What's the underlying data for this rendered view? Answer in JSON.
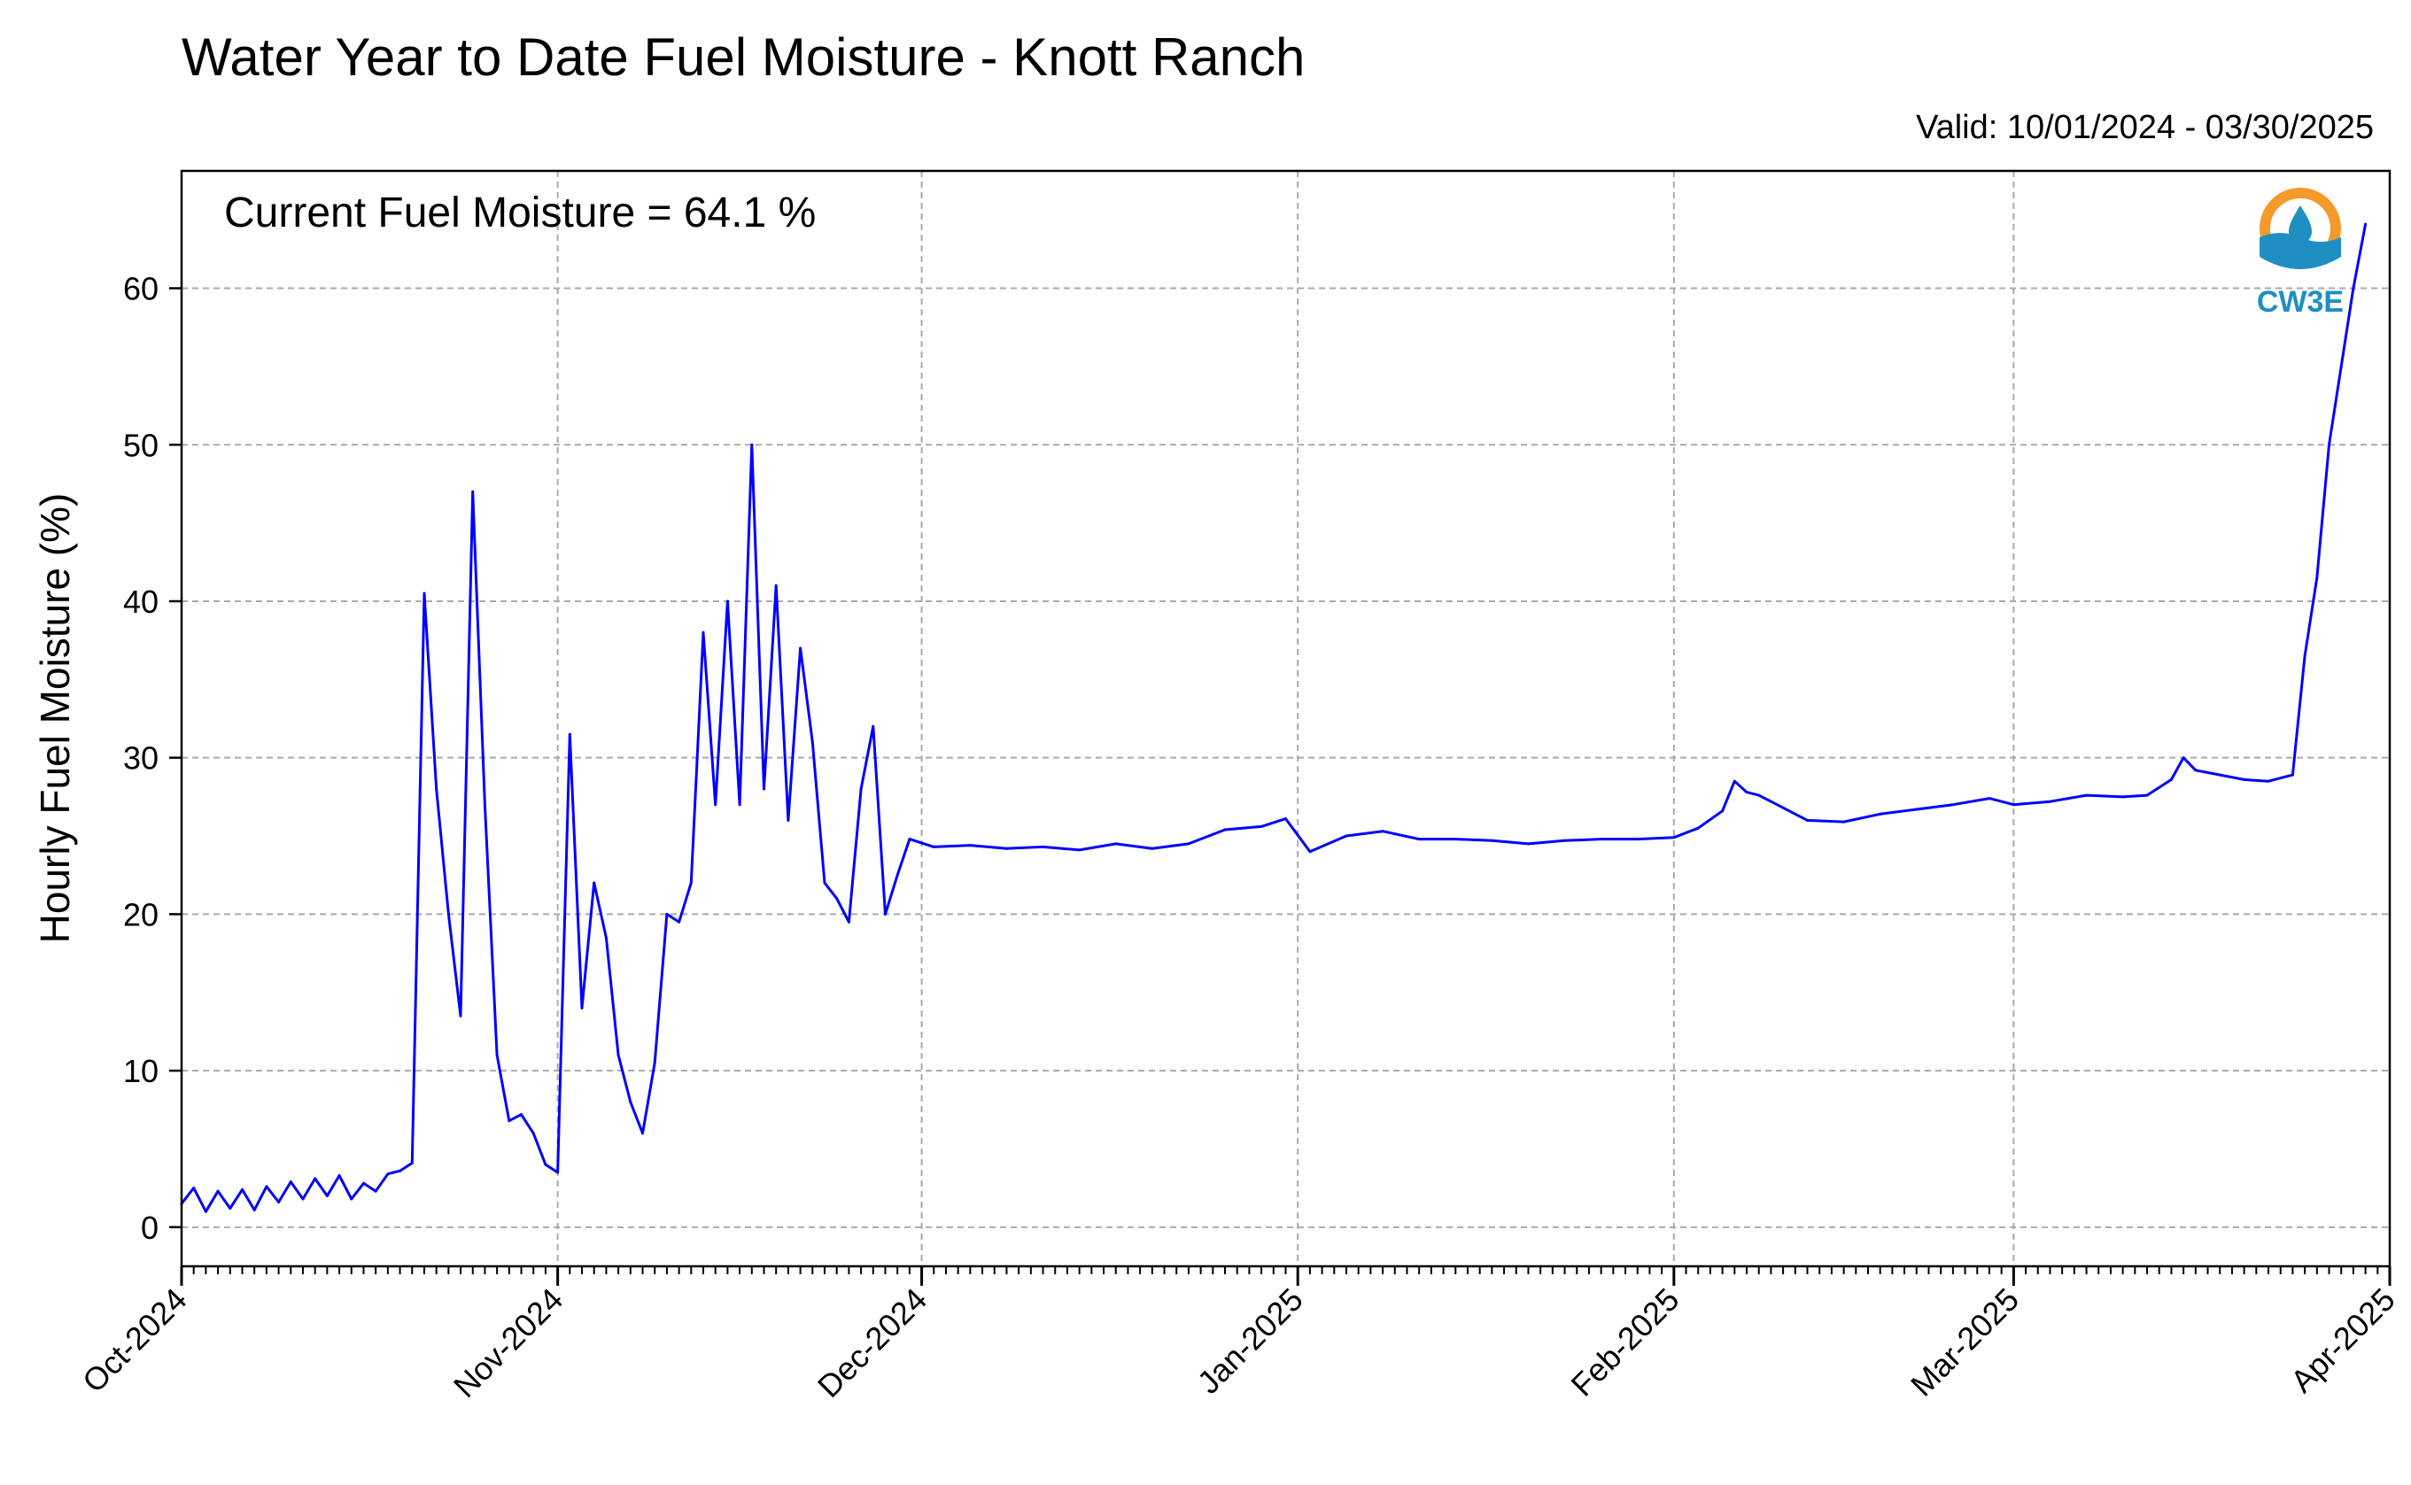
{
  "chart_data": {
    "type": "line",
    "title": "Water Year to Date Fuel Moisture - Knott Ranch",
    "subtitle": "Valid: 10/01/2024 - 03/30/2025",
    "ylabel": "Hourly Fuel Moisture (%)",
    "xlabel": "",
    "annotation": "Current Fuel Moisture = 64.1 %",
    "logo_text": "CW3E",
    "line_color": "#0000ff",
    "ylim": [
      -2.5,
      67.5
    ],
    "yticks": [
      0,
      10,
      20,
      30,
      40,
      50,
      60
    ],
    "xlim": [
      "2024-10-01",
      "2025-04-01"
    ],
    "xticks": [
      {
        "date": "2024-10-01",
        "label": "Oct-2024"
      },
      {
        "date": "2024-11-01",
        "label": "Nov-2024"
      },
      {
        "date": "2024-12-01",
        "label": "Dec-2024"
      },
      {
        "date": "2025-01-01",
        "label": "Jan-2025"
      },
      {
        "date": "2025-02-01",
        "label": "Feb-2025"
      },
      {
        "date": "2025-03-01",
        "label": "Mar-2025"
      },
      {
        "date": "2025-04-01",
        "label": "Apr-2025"
      }
    ],
    "grid": true,
    "series": [
      {
        "x": [
          "2024-10-01",
          "2024-10-02",
          "2024-10-03",
          "2024-10-04",
          "2024-10-05",
          "2024-10-06",
          "2024-10-07",
          "2024-10-08",
          "2024-10-09",
          "2024-10-10",
          "2024-10-11",
          "2024-10-12",
          "2024-10-13",
          "2024-10-14",
          "2024-10-15",
          "2024-10-16",
          "2024-10-17",
          "2024-10-18",
          "2024-10-19",
          "2024-10-20",
          "2024-10-21",
          "2024-10-22",
          "2024-10-23",
          "2024-10-24",
          "2024-10-25",
          "2024-10-26",
          "2024-10-27",
          "2024-10-28",
          "2024-10-29",
          "2024-10-30",
          "2024-10-31",
          "2024-11-01",
          "2024-11-02",
          "2024-11-03",
          "2024-11-04",
          "2024-11-05",
          "2024-11-06",
          "2024-11-07",
          "2024-11-08",
          "2024-11-09",
          "2024-11-10",
          "2024-11-11",
          "2024-11-12",
          "2024-11-13",
          "2024-11-14",
          "2024-11-15",
          "2024-11-16",
          "2024-11-17",
          "2024-11-18",
          "2024-11-19",
          "2024-11-20",
          "2024-11-21",
          "2024-11-22",
          "2024-11-23",
          "2024-11-24",
          "2024-11-25",
          "2024-11-26",
          "2024-11-27",
          "2024-11-28",
          "2024-11-29",
          "2024-11-30",
          "2024-12-02",
          "2024-12-05",
          "2024-12-08",
          "2024-12-11",
          "2024-12-14",
          "2024-12-17",
          "2024-12-20",
          "2024-12-23",
          "2024-12-26",
          "2024-12-29",
          "2024-12-31",
          "2025-01-02",
          "2025-01-05",
          "2025-01-08",
          "2025-01-11",
          "2025-01-14",
          "2025-01-17",
          "2025-01-20",
          "2025-01-23",
          "2025-01-26",
          "2025-01-29",
          "2025-02-01",
          "2025-02-03",
          "2025-02-05",
          "2025-02-06",
          "2025-02-07",
          "2025-02-08",
          "2025-02-10",
          "2025-02-12",
          "2025-02-15",
          "2025-02-18",
          "2025-02-21",
          "2025-02-24",
          "2025-02-27",
          "2025-03-01",
          "2025-03-04",
          "2025-03-07",
          "2025-03-10",
          "2025-03-12",
          "2025-03-14",
          "2025-03-15",
          "2025-03-16",
          "2025-03-18",
          "2025-03-20",
          "2025-03-22",
          "2025-03-24",
          "2025-03-25",
          "2025-03-26",
          "2025-03-27",
          "2025-03-28",
          "2025-03-29",
          "2025-03-30"
        ],
        "y": [
          1.5,
          2.5,
          1.0,
          2.3,
          1.2,
          2.4,
          1.1,
          2.6,
          1.6,
          2.9,
          1.8,
          3.1,
          2.0,
          3.3,
          1.8,
          2.8,
          2.3,
          3.4,
          3.6,
          4.1,
          40.5,
          28.0,
          20.0,
          13.5,
          47.0,
          27.0,
          11.0,
          6.8,
          7.2,
          6.0,
          4.0,
          3.5,
          31.5,
          14.0,
          22.0,
          18.5,
          11.0,
          8.0,
          6.0,
          10.5,
          20.0,
          19.5,
          22.0,
          38.0,
          27.0,
          40.0,
          27.0,
          50.0,
          28.0,
          41.0,
          26.0,
          37.0,
          31.0,
          22.0,
          21.0,
          19.5,
          28.0,
          32.0,
          20.0,
          22.5,
          24.8,
          24.3,
          24.4,
          24.2,
          24.3,
          24.1,
          24.5,
          24.2,
          24.5,
          25.4,
          25.6,
          26.1,
          24.0,
          25.0,
          25.3,
          24.8,
          24.8,
          24.7,
          24.5,
          24.7,
          24.8,
          24.8,
          24.9,
          25.5,
          26.6,
          28.5,
          27.8,
          27.6,
          26.8,
          26.0,
          25.9,
          26.4,
          26.7,
          27.0,
          27.4,
          27.0,
          27.2,
          27.6,
          27.5,
          27.6,
          28.6,
          30.0,
          29.2,
          28.9,
          28.6,
          28.5,
          28.9,
          36.5,
          41.5,
          50.0,
          55.0,
          60.0,
          64.1
        ]
      }
    ]
  }
}
